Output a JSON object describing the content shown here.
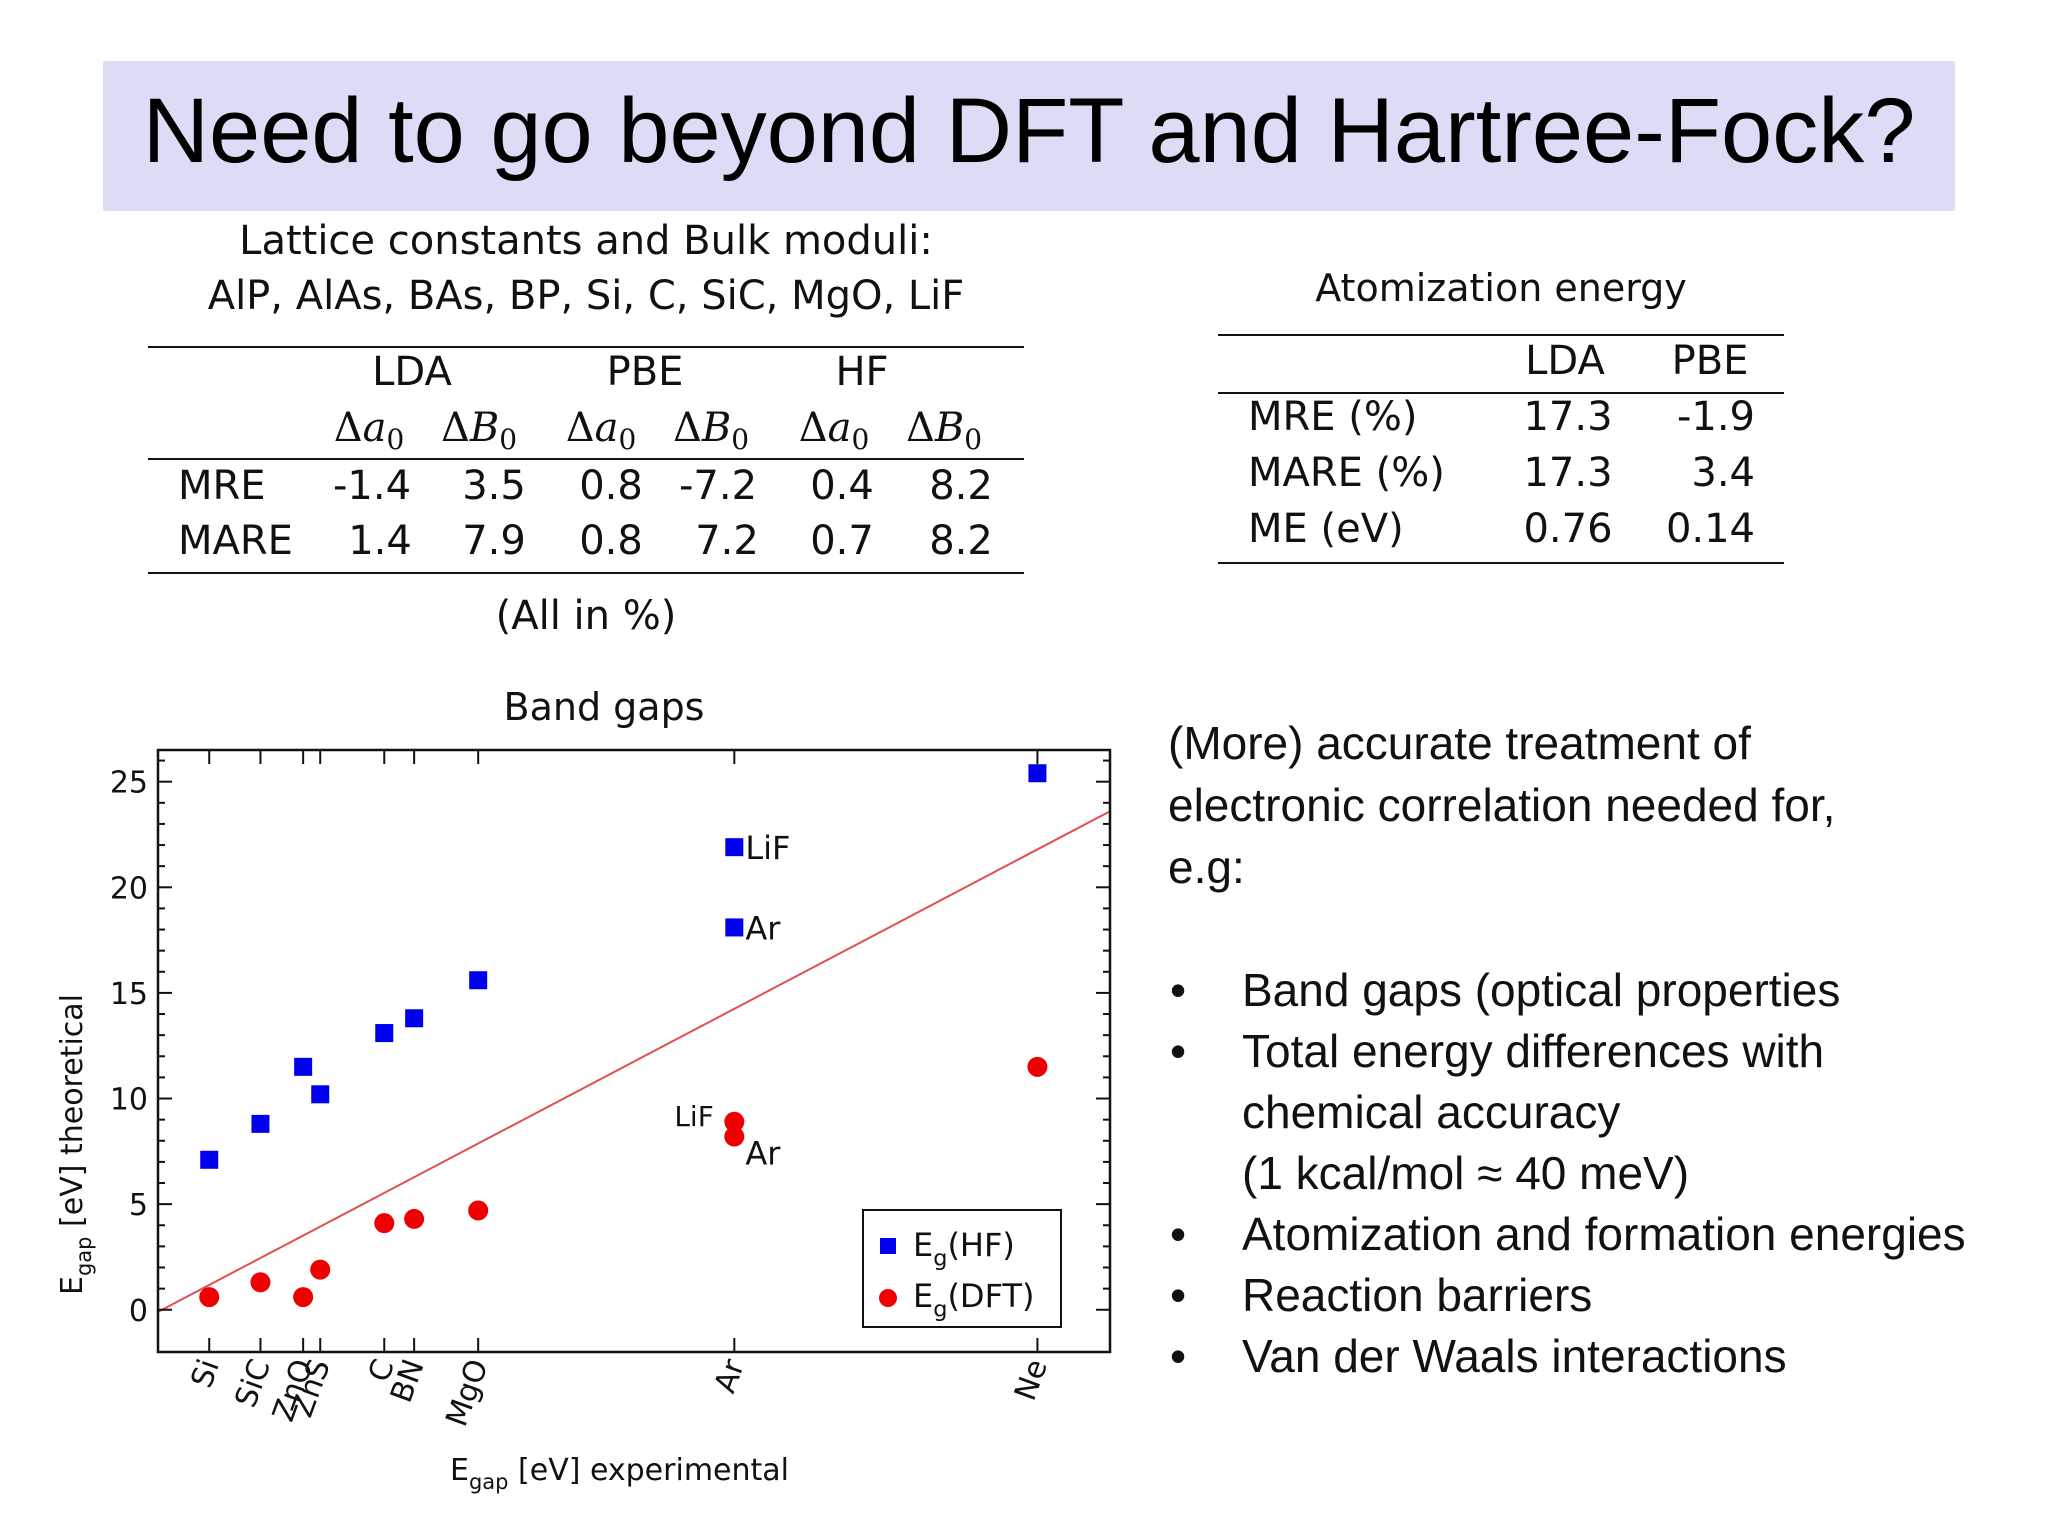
{
  "slide": {
    "title": "Need to go beyond DFT and Hartree-Fock?",
    "title_band_color": "#dcdcf6"
  },
  "lattice_table": {
    "title_line1": "Lattice constants and Bulk moduli:",
    "title_line2": "AlP, AlAs, BAs, BP, Si, C, SiC, MgO, LiF",
    "methods": [
      "LDA",
      "PBE",
      "HF"
    ],
    "sub_headers": [
      "Δa0",
      "ΔB0",
      "Δa0",
      "ΔB0",
      "Δa0",
      "ΔB0"
    ],
    "rows": [
      {
        "label": "MRE",
        "values": [
          "-1.4",
          "3.5",
          "0.8",
          "-7.2",
          "0.4",
          "8.2"
        ]
      },
      {
        "label": "MARE",
        "values": [
          "1.4",
          "7.9",
          "0.8",
          "7.2",
          "0.7",
          "8.2"
        ]
      }
    ],
    "footnote": "(All in %)"
  },
  "atomization_table": {
    "title": "Atomization energy",
    "methods": [
      "LDA",
      "PBE"
    ],
    "rows": [
      {
        "label": "MRE (%)",
        "values": [
          "17.3",
          "-1.9"
        ]
      },
      {
        "label": "MARE (%)",
        "values": [
          "17.3",
          "3.4"
        ]
      },
      {
        "label": "ME (eV)",
        "values": [
          "0.76",
          "0.14"
        ]
      }
    ]
  },
  "right_text": {
    "line1": "(More) accurate treatment of",
    "line2": "electronic correlation needed for,",
    "line3": "e.g:",
    "bullet_symbol": "•",
    "bullets": [
      "Band gaps (optical properties",
      "Total energy differences with",
      "chemical accuracy",
      "(1 kcal/mol ≈ 40 meV)",
      "Atomization and formation energies",
      "Reaction barriers",
      "Van der Waals interactions"
    ]
  },
  "chart_data": {
    "type": "scatter",
    "title": "Band gaps",
    "xlabel": "E",
    "xlabel_sub": "gap",
    "xlabel_rest": "[eV]   experimental",
    "ylabel": "E",
    "ylabel_sub": "gap",
    "ylabel_rest": "[eV]   theoretical",
    "xlim": [
      -0.1,
      22.2
    ],
    "ylim": [
      -2,
      26.5
    ],
    "yticks": [
      0,
      5,
      10,
      15,
      20,
      25
    ],
    "x_categories": [
      {
        "label": "Si",
        "x": 1.1
      },
      {
        "label": "SiC",
        "x": 2.3
      },
      {
        "label": "ZnO",
        "x": 3.3
      },
      {
        "label": "ZnS",
        "x": 3.7
      },
      {
        "label": "C",
        "x": 5.2
      },
      {
        "label": "BN",
        "x": 5.9
      },
      {
        "label": "MgO",
        "x": 7.4
      },
      {
        "label": "Ar",
        "x": 13.4
      },
      {
        "label": "Ne",
        "x": 20.5
      }
    ],
    "series": [
      {
        "name": "E_g(HF)",
        "legend_main": "E",
        "legend_sub": "g",
        "legend_rest": "(HF)",
        "color": "#0000ee",
        "marker": "square",
        "points": [
          {
            "x": 1.1,
            "y": 7.1
          },
          {
            "x": 2.3,
            "y": 8.8
          },
          {
            "x": 3.3,
            "y": 11.5
          },
          {
            "x": 3.7,
            "y": 10.2
          },
          {
            "x": 5.2,
            "y": 13.1
          },
          {
            "x": 5.9,
            "y": 13.8
          },
          {
            "x": 7.4,
            "y": 15.6
          },
          {
            "x": 13.4,
            "y": 21.9,
            "label": "LiF"
          },
          {
            "x": 13.4,
            "y": 18.1,
            "label": "Ar"
          },
          {
            "x": 20.5,
            "y": 25.4
          }
        ]
      },
      {
        "name": "E_g(DFT)",
        "legend_main": "E",
        "legend_sub": "g",
        "legend_rest": "(DFT)",
        "color": "#ee0000",
        "marker": "circle",
        "points": [
          {
            "x": 1.1,
            "y": 0.6
          },
          {
            "x": 2.3,
            "y": 1.3
          },
          {
            "x": 3.3,
            "y": 0.6
          },
          {
            "x": 3.7,
            "y": 1.9
          },
          {
            "x": 5.2,
            "y": 4.1
          },
          {
            "x": 5.9,
            "y": 4.3
          },
          {
            "x": 7.4,
            "y": 4.7
          },
          {
            "x": 13.4,
            "y": 8.9,
            "label": "LiF"
          },
          {
            "x": 13.4,
            "y": 8.2,
            "label": "Ar"
          },
          {
            "x": 20.5,
            "y": 11.5
          }
        ]
      }
    ],
    "reference_line": {
      "from": [
        -0.1,
        -0.1
      ],
      "to": [
        22.2,
        23.6
      ],
      "color": "#e05050"
    },
    "legend_position": "bottom-right",
    "grid": false
  }
}
